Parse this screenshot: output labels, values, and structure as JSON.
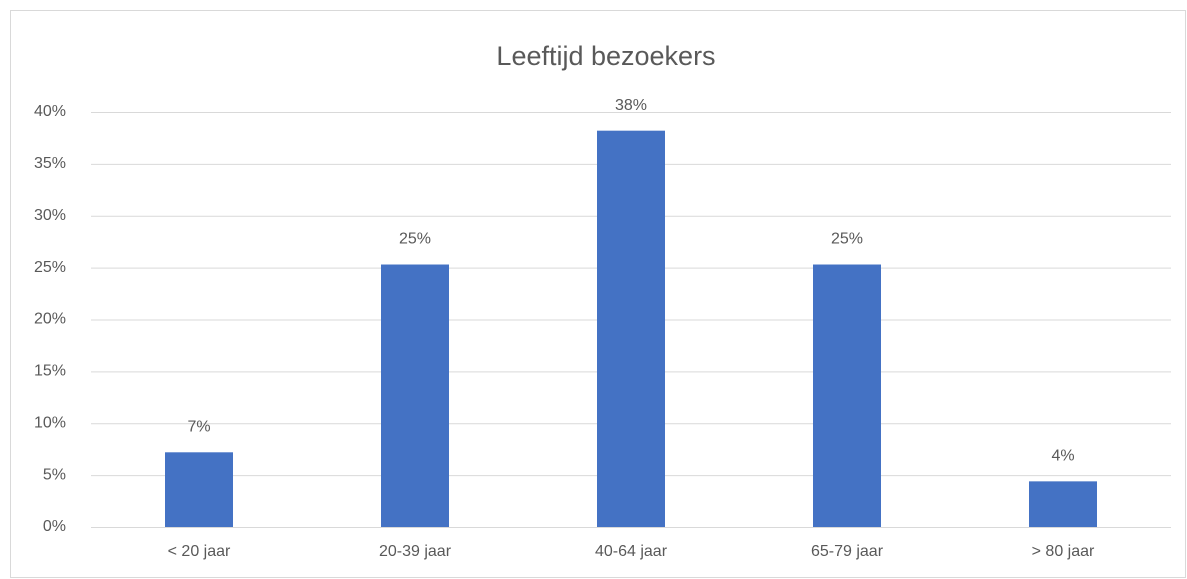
{
  "chart_data": {
    "type": "bar",
    "title": "Leeftijd bezoekers",
    "categories": [
      "< 20 jaar",
      "20-39 jaar",
      "40-64 jaar",
      "65-79 jaar",
      "> 80 jaar"
    ],
    "values": [
      7.2,
      25.3,
      38.2,
      25.3,
      4.4
    ],
    "value_labels": [
      "7%",
      "25%",
      "38%",
      "25%",
      "4%"
    ],
    "color": "#4472c4",
    "ylim": [
      0,
      40
    ],
    "yticks": [
      {
        "value": 0,
        "label": "0%"
      },
      {
        "value": 5,
        "label": "5%"
      },
      {
        "value": 10,
        "label": "10%"
      },
      {
        "value": 15,
        "label": "15%"
      },
      {
        "value": 20,
        "label": "20%"
      },
      {
        "value": 25,
        "label": "25%"
      },
      {
        "value": 30,
        "label": "30%"
      },
      {
        "value": 35,
        "label": "35%"
      },
      {
        "value": 40,
        "label": "40%"
      }
    ],
    "grid": true
  }
}
